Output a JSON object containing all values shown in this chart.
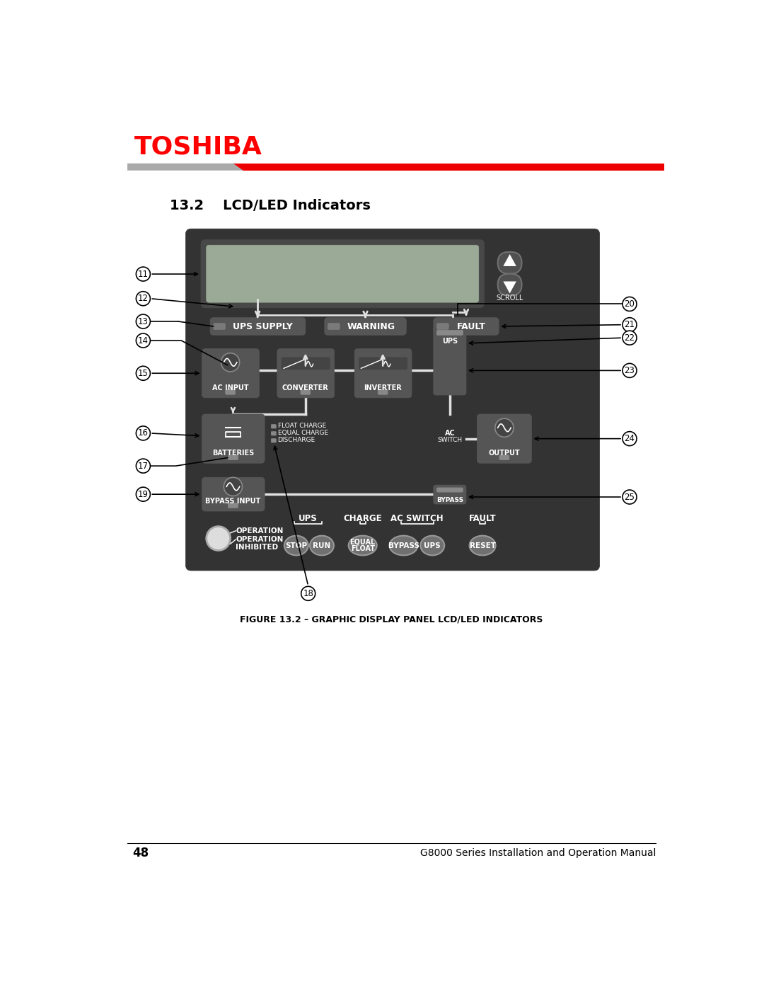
{
  "title": "13.2    LCD/LED Indicators",
  "figure_caption": "FIGURE 13.2 – GRAPHIC DISPLAY PANEL LCD/LED INDICATORS",
  "toshiba_text": "TOSHIBA",
  "toshiba_color": "#ff0000",
  "page_number": "48",
  "footer_text": "G8000 Series Installation and Operation Manual",
  "bg_color": "#ffffff",
  "panel_bg": "#333333",
  "panel_inner": "#3d3d3d",
  "comp_box": "#555555",
  "comp_box2": "#606060",
  "lcd_outer": "#484848",
  "lcd_inner": "#9aaa96",
  "scroll_btn": "#484848",
  "status_bar": "#565656",
  "led_rect": "#7a7a7a",
  "btn_color": "#707070",
  "btn_edge": "#888888",
  "white": "#ffffff",
  "light_gray": "#bbbbbb",
  "red_bar": "#ee0000",
  "gray_bar_color": "#999999",
  "black": "#000000",
  "wire_color": "#e0e0e0"
}
